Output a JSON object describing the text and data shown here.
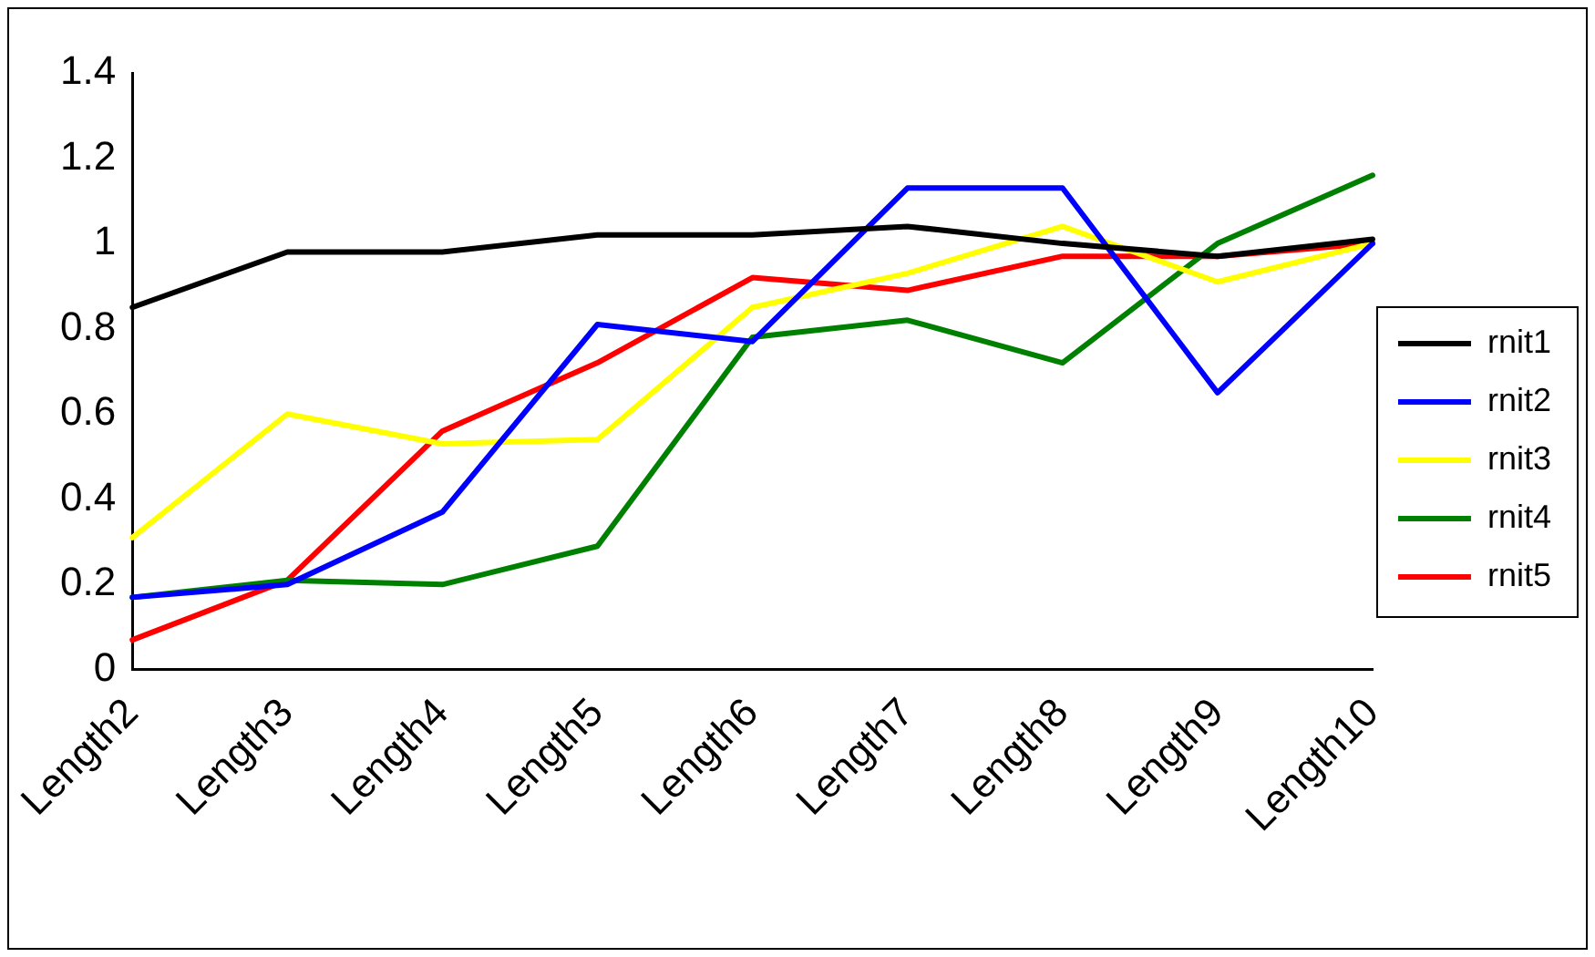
{
  "chart_data": {
    "type": "line",
    "categories": [
      "Length2",
      "Length3",
      "Length4",
      "Length5",
      "Length6",
      "Length7",
      "Length8",
      "Length9",
      "Length10"
    ],
    "series": [
      {
        "name": "rnit1",
        "color": "#000000",
        "values": [
          0.85,
          0.98,
          0.98,
          1.02,
          1.02,
          1.04,
          1.0,
          0.97,
          1.01
        ]
      },
      {
        "name": "rnit2",
        "color": "#0000ff",
        "values": [
          0.17,
          0.2,
          0.37,
          0.81,
          0.77,
          1.13,
          1.13,
          0.65,
          1.0
        ]
      },
      {
        "name": "rnit3",
        "color": "#ffff00",
        "values": [
          0.31,
          0.6,
          0.53,
          0.54,
          0.85,
          0.93,
          1.04,
          0.91,
          1.0
        ]
      },
      {
        "name": "rnit4",
        "color": "#008000",
        "values": [
          0.17,
          0.21,
          0.2,
          0.29,
          0.78,
          0.82,
          0.72,
          1.0,
          1.16
        ]
      },
      {
        "name": "rnit5",
        "color": "#ff0000",
        "values": [
          0.07,
          0.21,
          0.56,
          0.72,
          0.92,
          0.89,
          0.97,
          0.97,
          1.0
        ]
      }
    ],
    "ylim": [
      0,
      1.4
    ],
    "yticks": [
      0,
      0.2,
      0.4,
      0.6,
      0.8,
      1,
      1.2,
      1.4
    ],
    "grid": false,
    "legend": "right",
    "marker": "none",
    "line_style": "solid"
  }
}
